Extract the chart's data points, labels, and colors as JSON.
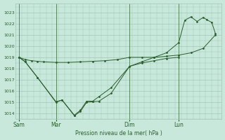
{
  "title": "Pression niveau de la mer( hPa )",
  "ylabel_values": [
    1014,
    1015,
    1016,
    1017,
    1018,
    1019,
    1020,
    1021,
    1022,
    1023
  ],
  "ylim": [
    1013.5,
    1023.8
  ],
  "background_color": "#c8e8dc",
  "grid_color": "#a0c8b8",
  "line_color": "#2a5e2a",
  "xtick_labels": [
    "Sam",
    "Mar",
    "Dim",
    "Lun"
  ],
  "xtick_positions": [
    0,
    3,
    9,
    13
  ],
  "vline_positions": [
    0,
    3,
    9,
    13
  ],
  "s1_x": [
    0,
    0.5,
    1,
    1.5,
    2,
    3,
    4,
    5,
    6,
    7,
    8,
    9,
    10,
    11,
    12,
    13,
    14,
    15,
    16
  ],
  "s1_y": [
    1019.0,
    1018.8,
    1018.7,
    1018.65,
    1018.6,
    1018.55,
    1018.55,
    1018.6,
    1018.65,
    1018.7,
    1018.8,
    1019.0,
    1019.0,
    1019.0,
    1019.1,
    1019.2,
    1019.4,
    1019.8,
    1021.0
  ],
  "s2_x": [
    0,
    0.5,
    1.5,
    3.0,
    3.5,
    4.5,
    5.0,
    5.5,
    6.0,
    6.5,
    7.5,
    9.0,
    10.0,
    11.0,
    12.0,
    13.0
  ],
  "s2_y": [
    1019.0,
    1018.6,
    1017.2,
    1015.0,
    1015.2,
    1013.8,
    1014.2,
    1015.0,
    1015.05,
    1015.1,
    1015.8,
    1018.2,
    1018.5,
    1018.7,
    1018.9,
    1019.0
  ],
  "s3_x": [
    0,
    0.5,
    1.5,
    3.0,
    3.5,
    4.5,
    5.0,
    5.5,
    6.0,
    6.5,
    7.5,
    9.0,
    10.0,
    11.0,
    12.0,
    13.0,
    13.5,
    14.0,
    14.5,
    15.0,
    15.3,
    15.7,
    16.0
  ],
  "s3_y": [
    1019.0,
    1018.6,
    1017.2,
    1015.05,
    1015.2,
    1013.85,
    1014.3,
    1015.1,
    1015.1,
    1015.5,
    1016.3,
    1018.2,
    1018.6,
    1019.0,
    1019.4,
    1020.3,
    1022.3,
    1022.6,
    1022.2,
    1022.55,
    1022.35,
    1022.1,
    1021.1
  ],
  "xlim": [
    -0.3,
    16.5
  ]
}
